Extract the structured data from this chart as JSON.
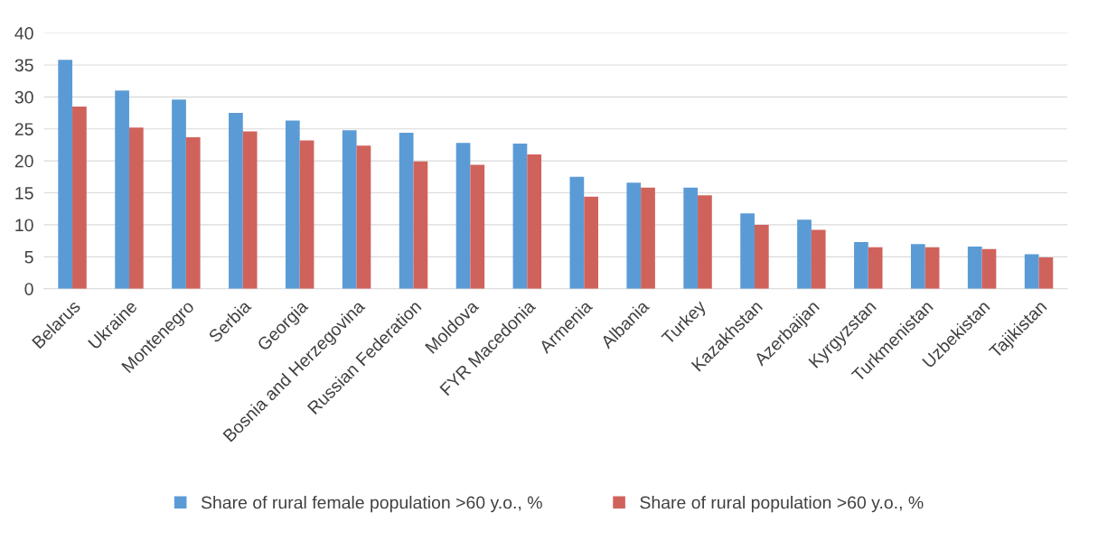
{
  "chart_data": {
    "type": "bar",
    "categories": [
      "Belarus",
      "Ukraine",
      "Montenegro",
      "Serbia",
      "Georgia",
      "Bosnia and Herzegovina",
      "Russian Federation",
      "Moldova",
      "FYR Macedonia",
      "Armenia",
      "Albania",
      "Turkey",
      "Kazakhstan",
      "Azerbaijan",
      "Kyrgyzstan",
      "Turkmenistan",
      "Uzbekistan",
      "Tajikistan"
    ],
    "series": [
      {
        "name": "Share of rural female population >60 y.o., %",
        "color": "#5b9bd5",
        "values": [
          35.8,
          31.0,
          29.6,
          27.5,
          26.3,
          24.8,
          24.4,
          22.8,
          22.7,
          17.5,
          16.6,
          15.8,
          11.8,
          10.8,
          7.3,
          7.0,
          6.6,
          5.4
        ]
      },
      {
        "name": "Share of rural population >60 y.o., %",
        "color": "#d0625c",
        "values": [
          28.5,
          25.2,
          23.7,
          24.6,
          23.2,
          22.4,
          19.9,
          19.4,
          21.0,
          14.4,
          15.8,
          14.6,
          10.0,
          9.2,
          6.5,
          6.5,
          6.2,
          4.9
        ]
      }
    ],
    "ylim": [
      0,
      40
    ],
    "yticks": [
      0,
      5,
      10,
      15,
      20,
      25,
      30,
      35,
      40
    ],
    "grid": "y",
    "legend": "bottom"
  }
}
